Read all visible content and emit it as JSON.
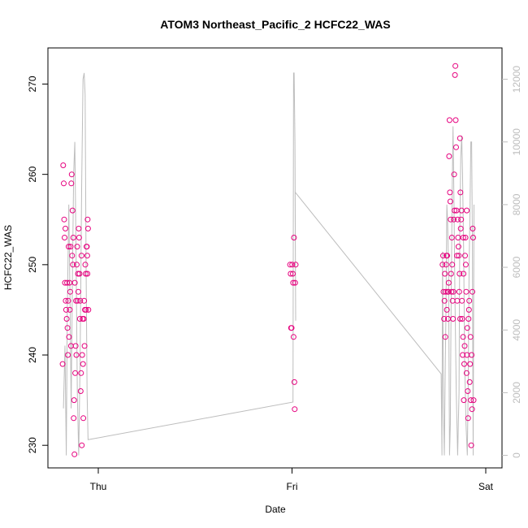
{
  "chart_data": {
    "type": "scatter",
    "title": "ATOM3 Northeast_Pacific_2 HCFC22_WAS",
    "xlabel": "Date",
    "ylabel": "HCFC22_WAS",
    "x_ticks": [
      "Thu",
      "Fri",
      "Sat"
    ],
    "xlim_days": [
      -0.2,
      2.0
    ],
    "ylim": [
      227.5,
      274.0
    ],
    "y_ticks": [
      230,
      240,
      250,
      260,
      270
    ],
    "y2lim": [
      -400,
      13000
    ],
    "y2_ticks": [
      0,
      2000,
      4000,
      6000,
      8000,
      10000,
      12000
    ],
    "colors": {
      "points": "#e6007e",
      "altitude_line": "#bdbdbd",
      "frame": "#000000"
    },
    "series": [
      {
        "marker": "open-circle",
        "points": [
          [
            -0.184,
            239
          ],
          [
            -0.181,
            261
          ],
          [
            -0.178,
            259
          ],
          [
            -0.176,
            255
          ],
          [
            -0.174,
            253
          ],
          [
            -0.172,
            248
          ],
          [
            -0.17,
            254
          ],
          [
            -0.168,
            246
          ],
          [
            -0.166,
            245
          ],
          [
            -0.163,
            244
          ],
          [
            -0.161,
            248
          ],
          [
            -0.159,
            243
          ],
          [
            -0.157,
            240
          ],
          [
            -0.155,
            246
          ],
          [
            -0.153,
            252
          ],
          [
            -0.151,
            242
          ],
          [
            -0.149,
            248
          ],
          [
            -0.147,
            245
          ],
          [
            -0.145,
            247
          ],
          [
            -0.143,
            252
          ],
          [
            -0.141,
            241
          ],
          [
            -0.139,
            259
          ],
          [
            -0.137,
            260
          ],
          [
            -0.135,
            251
          ],
          [
            -0.133,
            256
          ],
          [
            -0.131,
            250
          ],
          [
            -0.129,
            253
          ],
          [
            -0.127,
            233
          ],
          [
            -0.125,
            235
          ],
          [
            -0.123,
            229
          ],
          [
            -0.121,
            248
          ],
          [
            -0.119,
            238
          ],
          [
            -0.117,
            241
          ],
          [
            -0.115,
            246
          ],
          [
            -0.113,
            240
          ],
          [
            -0.111,
            250
          ],
          [
            -0.109,
            252
          ],
          [
            -0.107,
            246
          ],
          [
            -0.105,
            249
          ],
          [
            -0.103,
            247
          ],
          [
            -0.101,
            254
          ],
          [
            -0.099,
            253
          ],
          [
            -0.097,
            249
          ],
          [
            -0.095,
            244
          ],
          [
            -0.093,
            246
          ],
          [
            -0.091,
            236
          ],
          [
            -0.089,
            238
          ],
          [
            -0.087,
            251
          ],
          [
            -0.085,
            230
          ],
          [
            -0.083,
            240
          ],
          [
            -0.081,
            244
          ],
          [
            -0.079,
            239
          ],
          [
            -0.077,
            233
          ],
          [
            -0.075,
            244
          ],
          [
            -0.073,
            246
          ],
          [
            -0.071,
            241
          ],
          [
            -0.069,
            245
          ],
          [
            -0.067,
            250
          ],
          [
            -0.065,
            249
          ],
          [
            -0.063,
            245
          ],
          [
            -0.061,
            252
          ],
          [
            -0.059,
            252
          ],
          [
            -0.057,
            251
          ],
          [
            -0.055,
            255
          ],
          [
            -0.053,
            254
          ],
          [
            -0.051,
            245
          ],
          [
            -0.056,
            249
          ],
          [
            0.99,
            250
          ],
          [
            0.993,
            249
          ],
          [
            0.995,
            243
          ],
          [
            0.998,
            243
          ],
          [
            1.001,
            250
          ],
          [
            1.004,
            249
          ],
          [
            1.006,
            248
          ],
          [
            1.008,
            242
          ],
          [
            1.01,
            253
          ],
          [
            1.012,
            237
          ],
          [
            1.014,
            234
          ],
          [
            1.016,
            248
          ],
          [
            1.019,
            250
          ],
          [
            1.777,
            250
          ],
          [
            1.78,
            251
          ],
          [
            1.782,
            247
          ],
          [
            1.785,
            244
          ],
          [
            1.787,
            246
          ],
          [
            1.789,
            249
          ],
          [
            1.791,
            242
          ],
          [
            1.793,
            247
          ],
          [
            1.795,
            250
          ],
          [
            1.797,
            251
          ],
          [
            1.799,
            245
          ],
          [
            1.801,
            251
          ],
          [
            1.803,
            247
          ],
          [
            1.805,
            244
          ],
          [
            1.807,
            247
          ],
          [
            1.809,
            248
          ],
          [
            1.811,
            262
          ],
          [
            1.813,
            266
          ],
          [
            1.815,
            258
          ],
          [
            1.817,
            257
          ],
          [
            1.819,
            255
          ],
          [
            1.821,
            249
          ],
          [
            1.823,
            247
          ],
          [
            1.825,
            253
          ],
          [
            1.827,
            250
          ],
          [
            1.829,
            246
          ],
          [
            1.831,
            244
          ],
          [
            1.833,
            247
          ],
          [
            1.835,
            255
          ],
          [
            1.837,
            260
          ],
          [
            1.839,
            256
          ],
          [
            1.841,
            271
          ],
          [
            1.843,
            272
          ],
          [
            1.845,
            266
          ],
          [
            1.847,
            263
          ],
          [
            1.849,
            256
          ],
          [
            1.851,
            251
          ],
          [
            1.853,
            246
          ],
          [
            1.855,
            255
          ],
          [
            1.857,
            253
          ],
          [
            1.859,
            252
          ],
          [
            1.861,
            251
          ],
          [
            1.863,
            247
          ],
          [
            1.865,
            249
          ],
          [
            1.867,
            264
          ],
          [
            1.869,
            258
          ],
          [
            1.871,
            254
          ],
          [
            1.873,
            255
          ],
          [
            1.875,
            256
          ],
          [
            1.877,
            246
          ],
          [
            1.879,
            244
          ],
          [
            1.881,
            240
          ],
          [
            1.883,
            242
          ],
          [
            1.885,
            249
          ],
          [
            1.887,
            235
          ],
          [
            1.889,
            239
          ],
          [
            1.891,
            241
          ],
          [
            1.893,
            251
          ],
          [
            1.895,
            253
          ],
          [
            1.897,
            250
          ],
          [
            1.899,
            247
          ],
          [
            1.901,
            238
          ],
          [
            1.903,
            240
          ],
          [
            1.905,
            243
          ],
          [
            1.907,
            236
          ],
          [
            1.909,
            233
          ],
          [
            1.911,
            244
          ],
          [
            1.913,
            245
          ],
          [
            1.915,
            246
          ],
          [
            1.917,
            237
          ],
          [
            1.919,
            239
          ],
          [
            1.921,
            242
          ],
          [
            1.923,
            235
          ],
          [
            1.925,
            230
          ],
          [
            1.927,
            240
          ],
          [
            1.929,
            234
          ],
          [
            1.931,
            247
          ],
          [
            1.933,
            254
          ],
          [
            1.935,
            253
          ],
          [
            1.937,
            235
          ],
          [
            1.902,
            256
          ],
          [
            1.884,
            253
          ],
          [
            1.868,
            244
          ]
        ]
      },
      {
        "marker": "line",
        "axis": "right",
        "points": [
          [
            -0.18,
            1500
          ],
          [
            -0.172,
            3500
          ],
          [
            -0.165,
            0
          ],
          [
            -0.16,
            4500
          ],
          [
            -0.152,
            8000
          ],
          [
            -0.146,
            5000
          ],
          [
            -0.14,
            1500
          ],
          [
            -0.133,
            6000
          ],
          [
            -0.127,
            9000
          ],
          [
            -0.121,
            10000
          ],
          [
            -0.115,
            6500
          ],
          [
            -0.108,
            2000
          ],
          [
            -0.101,
            0
          ],
          [
            -0.094,
            3000
          ],
          [
            -0.086,
            8500
          ],
          [
            -0.079,
            12000
          ],
          [
            -0.073,
            12200
          ],
          [
            -0.068,
            11500
          ],
          [
            -0.063,
            6000
          ],
          [
            -0.058,
            2000
          ],
          [
            -0.053,
            500
          ],
          [
            1.005,
            1700
          ],
          [
            1.008,
            12200
          ],
          [
            1.011,
            12200
          ],
          [
            1.015,
            10000
          ],
          [
            1.019,
            4300
          ],
          [
            1.016,
            8400
          ],
          [
            1.77,
            2600
          ],
          [
            1.774,
            0
          ],
          [
            1.777,
            6500
          ],
          [
            1.782,
            1500
          ],
          [
            1.786,
            0
          ],
          [
            1.791,
            3000
          ],
          [
            1.794,
            4300
          ],
          [
            1.799,
            8000
          ],
          [
            1.803,
            7500
          ],
          [
            1.808,
            6000
          ],
          [
            1.813,
            0
          ],
          [
            1.817,
            1000
          ],
          [
            1.82,
            4000
          ],
          [
            1.826,
            8000
          ],
          [
            1.831,
            10500
          ],
          [
            1.836,
            8000
          ],
          [
            1.841,
            5000
          ],
          [
            1.848,
            2000
          ],
          [
            1.855,
            0
          ],
          [
            1.862,
            2000
          ],
          [
            1.866,
            7000
          ],
          [
            1.871,
            9500
          ],
          [
            1.876,
            10200
          ],
          [
            1.88,
            9000
          ],
          [
            1.886,
            6500
          ],
          [
            1.891,
            3000
          ],
          [
            1.898,
            1000
          ],
          [
            1.905,
            0
          ],
          [
            1.91,
            2500
          ],
          [
            1.914,
            6000
          ],
          [
            1.919,
            8000
          ],
          [
            1.923,
            10000
          ],
          [
            1.927,
            10000
          ],
          [
            1.931,
            7000
          ],
          [
            1.935,
            0
          ],
          [
            1.939,
            8000
          ]
        ]
      }
    ]
  }
}
